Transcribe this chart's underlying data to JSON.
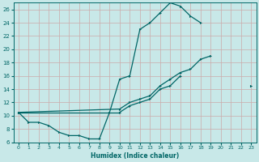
{
  "xlabel": "Humidex (Indice chaleur)",
  "background_color": "#c8e8e8",
  "grid_color": "#ccaaaa",
  "line_color": "#006666",
  "xlim": [
    -0.5,
    23.5
  ],
  "ylim": [
    6,
    27
  ],
  "yticks": [
    6,
    8,
    10,
    12,
    14,
    16,
    18,
    20,
    22,
    24,
    26
  ],
  "xticks": [
    0,
    1,
    2,
    3,
    4,
    5,
    6,
    7,
    8,
    9,
    10,
    11,
    12,
    13,
    14,
    15,
    16,
    17,
    18,
    19,
    20,
    21,
    22,
    23
  ],
  "series1_y": [
    10.5,
    9.0,
    9.0,
    8.5,
    7.5,
    7.0,
    7.0,
    6.5,
    6.5,
    10.5,
    15.5,
    16.0,
    23.0,
    24.0,
    25.5,
    27.0,
    26.5,
    25.0,
    24.0,
    null,
    null,
    null,
    null,
    null
  ],
  "series2_y": [
    10.5,
    null,
    null,
    null,
    null,
    null,
    null,
    null,
    null,
    null,
    11.0,
    12.0,
    12.5,
    13.0,
    14.5,
    15.5,
    16.5,
    17.0,
    18.5,
    19.0,
    null,
    null,
    null,
    14.5
  ],
  "series3_y": [
    10.5,
    null,
    null,
    null,
    null,
    null,
    null,
    null,
    null,
    null,
    10.5,
    11.5,
    12.0,
    12.5,
    14.0,
    14.5,
    16.0,
    null,
    null,
    null,
    null,
    null,
    null,
    14.5
  ]
}
